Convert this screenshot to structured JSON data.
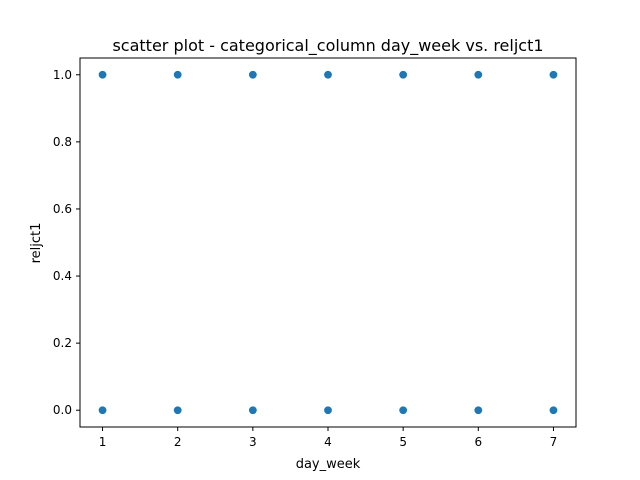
{
  "chart_data": {
    "type": "scatter",
    "title": "scatter plot - categorical_column day_week vs. reljct1",
    "xlabel": "day_week",
    "ylabel": "reljct1",
    "x_ticks": [
      1,
      2,
      3,
      4,
      5,
      6,
      7
    ],
    "x_tick_labels": [
      "1",
      "2",
      "3",
      "4",
      "5",
      "6",
      "7"
    ],
    "y_ticks": [
      0.0,
      0.2,
      0.4,
      0.6,
      0.8,
      1.0
    ],
    "y_tick_labels": [
      "0.0",
      "0.2",
      "0.4",
      "0.6",
      "0.8",
      "1.0"
    ],
    "xlim": [
      0.7,
      7.3
    ],
    "ylim": [
      -0.05,
      1.05
    ],
    "grid": false,
    "marker_color": "#1f77b4",
    "series": [
      {
        "name": "reljct1",
        "points": [
          {
            "x": 1,
            "y": 0
          },
          {
            "x": 1,
            "y": 1
          },
          {
            "x": 2,
            "y": 0
          },
          {
            "x": 2,
            "y": 1
          },
          {
            "x": 3,
            "y": 0
          },
          {
            "x": 3,
            "y": 1
          },
          {
            "x": 4,
            "y": 0
          },
          {
            "x": 4,
            "y": 1
          },
          {
            "x": 5,
            "y": 0
          },
          {
            "x": 5,
            "y": 1
          },
          {
            "x": 6,
            "y": 0
          },
          {
            "x": 6,
            "y": 1
          },
          {
            "x": 7,
            "y": 0
          },
          {
            "x": 7,
            "y": 1
          }
        ]
      }
    ]
  }
}
